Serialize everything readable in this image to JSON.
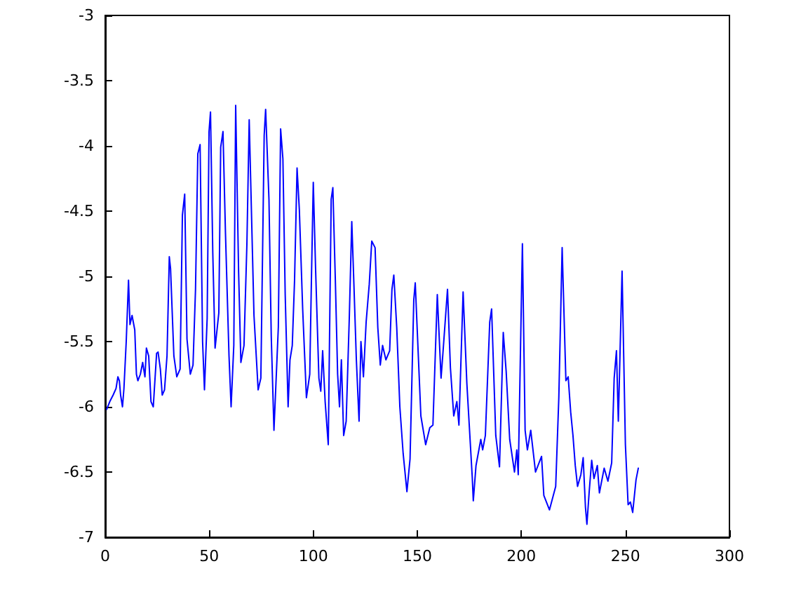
{
  "chart_data": {
    "type": "line",
    "color": "#0000ff",
    "marker": "none",
    "line_style": "solid",
    "grid": false,
    "xlim": [
      0,
      300
    ],
    "xticks": [
      0,
      50,
      100,
      150,
      200,
      250,
      300
    ],
    "ylim": [
      -7,
      -3
    ],
    "yticks": [
      -7,
      -6.5,
      -6,
      -5.5,
      -5,
      -4.5,
      -4,
      -3.5,
      -3
    ],
    "x": [
      0.7,
      2.2,
      3.8,
      5.2,
      6.1,
      6.8,
      7.4,
      8.3,
      9,
      10.1,
      11.2,
      11.9,
      12.9,
      14.2,
      15,
      15.7,
      16.9,
      18,
      19.1,
      19.8,
      20.9,
      22,
      23.1,
      24.7,
      25.4,
      26.5,
      27.4,
      28.5,
      29.7,
      30.8,
      31.4,
      33,
      34.4,
      36,
      37.1,
      38.2,
      39.3,
      40.9,
      42.2,
      43.4,
      44.5,
      45.6,
      46.8,
      47.7,
      49,
      49.9,
      50.6,
      51.7,
      52.8,
      54.6,
      55.5,
      56.6,
      57.8,
      59.5,
      60.5,
      61.8,
      62.7,
      64.1,
      65.2,
      66.7,
      68.1,
      69.2,
      71.5,
      73.5,
      74.8,
      76.4,
      77.1,
      78.7,
      79.8,
      81.1,
      83.2,
      84.3,
      85.4,
      86.5,
      87.9,
      88.8,
      89.9,
      91,
      92.2,
      93.3,
      94.9,
      96.7,
      98.3,
      99.1,
      100,
      101.1,
      102.7,
      103.6,
      104.5,
      105.7,
      107.2,
      108.6,
      109.4,
      110.6,
      111.7,
      112.6,
      113.5,
      114.6,
      115.8,
      117.3,
      118.5,
      119.6,
      120.7,
      122,
      122.9,
      124.1,
      125.4,
      126.9,
      128.1,
      129.7,
      131,
      132.2,
      133.3,
      134.9,
      136.7,
      137.8,
      138.7,
      140.1,
      141.6,
      143.2,
      145,
      146.5,
      148.3,
      149,
      151.7,
      154,
      156,
      157.5,
      159.6,
      161.4,
      162.3,
      164.5,
      165.9,
      167.5,
      169,
      170,
      172,
      173.8,
      176.4,
      176.9,
      178.2,
      180.5,
      181.4,
      182.7,
      184.8,
      185.7,
      187.7,
      189.5,
      191.3,
      192.7,
      194.4,
      196.7,
      197.8,
      198.5,
      200.5,
      201.8,
      202.9,
      204.5,
      206.8,
      209.7,
      210.8,
      213.5,
      216.5,
      218,
      219.6,
      221.4,
      222.5,
      223.7,
      224.8,
      225.9,
      227,
      228.6,
      229.7,
      230.8,
      231.5,
      232.6,
      233.8,
      234.9,
      236.5,
      237.5,
      239.8,
      241.6,
      243.4,
      244.6,
      245.7,
      246.6,
      248.4,
      250,
      251.3,
      252.4,
      253.5,
      255.1,
      256.2
    ],
    "values": [
      -6.02,
      -5.96,
      -5.91,
      -5.86,
      -5.77,
      -5.8,
      -5.91,
      -6.0,
      -5.86,
      -5.5,
      -5.03,
      -5.37,
      -5.3,
      -5.41,
      -5.75,
      -5.8,
      -5.75,
      -5.66,
      -5.77,
      -5.55,
      -5.61,
      -5.96,
      -6.0,
      -5.59,
      -5.58,
      -5.71,
      -5.91,
      -5.87,
      -5.61,
      -4.85,
      -4.94,
      -5.61,
      -5.77,
      -5.71,
      -4.53,
      -4.37,
      -5.48,
      -5.75,
      -5.68,
      -5.1,
      -4.06,
      -3.99,
      -5.5,
      -5.87,
      -5.32,
      -3.89,
      -3.74,
      -4.82,
      -5.55,
      -5.28,
      -4.01,
      -3.89,
      -4.67,
      -5.61,
      -6.0,
      -5.53,
      -3.69,
      -4.96,
      -5.66,
      -5.53,
      -4.75,
      -3.8,
      -5.3,
      -5.87,
      -5.78,
      -3.92,
      -3.72,
      -4.41,
      -5.46,
      -6.18,
      -5.39,
      -3.87,
      -4.1,
      -5.14,
      -6.0,
      -5.64,
      -5.53,
      -5.03,
      -4.17,
      -4.49,
      -5.25,
      -5.93,
      -5.75,
      -5.03,
      -4.28,
      -4.94,
      -5.78,
      -5.88,
      -5.57,
      -5.96,
      -6.29,
      -4.41,
      -4.32,
      -5.03,
      -5.75,
      -6.0,
      -5.64,
      -6.22,
      -6.11,
      -5.32,
      -4.58,
      -5.1,
      -5.64,
      -6.11,
      -5.5,
      -5.77,
      -5.35,
      -5.06,
      -4.73,
      -4.78,
      -5.39,
      -5.68,
      -5.53,
      -5.64,
      -5.57,
      -5.1,
      -4.99,
      -5.39,
      -6.0,
      -6.36,
      -6.65,
      -6.4,
      -5.18,
      -5.05,
      -6.07,
      -6.29,
      -6.16,
      -6.14,
      -5.14,
      -5.78,
      -5.59,
      -5.1,
      -5.7,
      -6.07,
      -5.96,
      -6.14,
      -5.12,
      -5.82,
      -6.54,
      -6.72,
      -6.45,
      -6.25,
      -6.33,
      -6.22,
      -5.35,
      -5.25,
      -6.22,
      -6.46,
      -5.43,
      -5.73,
      -6.25,
      -6.5,
      -6.33,
      -6.52,
      -4.75,
      -6.18,
      -6.33,
      -6.18,
      -6.5,
      -6.38,
      -6.68,
      -6.79,
      -6.61,
      -5.93,
      -4.78,
      -5.8,
      -5.77,
      -6.04,
      -6.22,
      -6.45,
      -6.61,
      -6.52,
      -6.39,
      -6.77,
      -6.9,
      -6.65,
      -6.41,
      -6.55,
      -6.45,
      -6.66,
      -6.47,
      -6.57,
      -6.43,
      -5.78,
      -5.57,
      -6.11,
      -4.96,
      -6.29,
      -6.75,
      -6.73,
      -6.81,
      -6.56,
      -6.47
    ]
  }
}
